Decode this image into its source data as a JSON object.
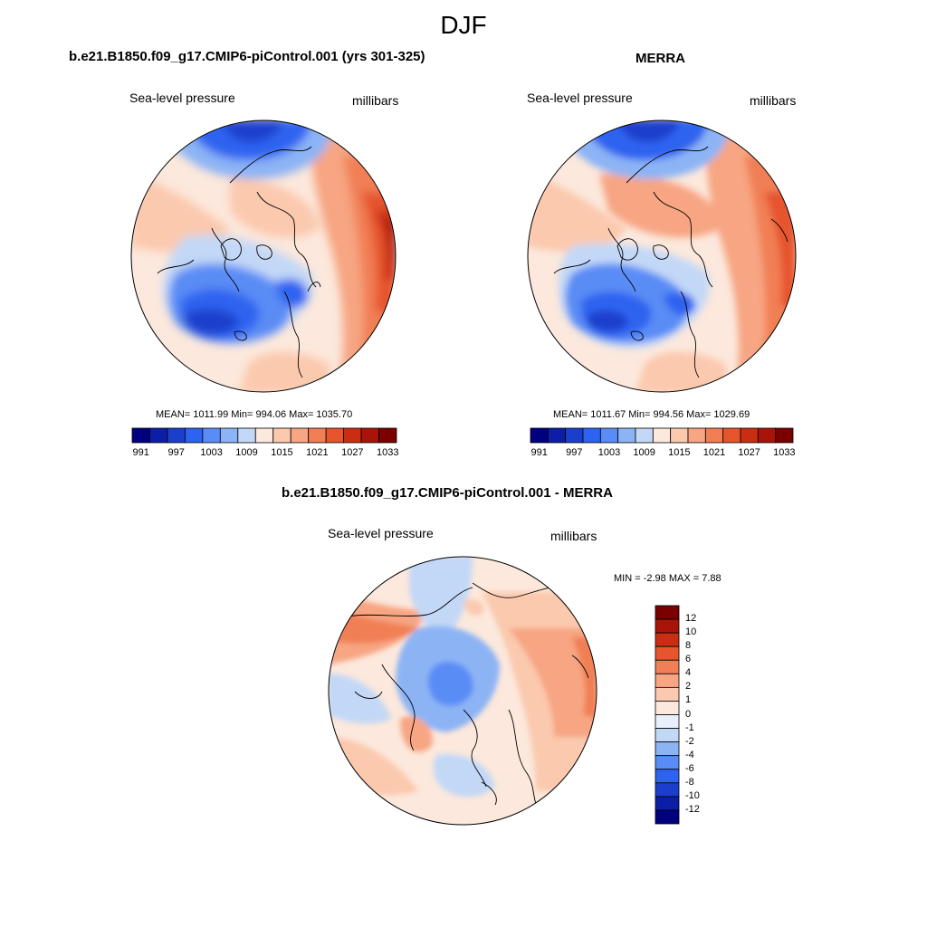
{
  "title": "DJF",
  "palettes": {
    "abs": [
      "#00007f",
      "#0c1ea5",
      "#1b3fcc",
      "#2d63f0",
      "#5a8cf5",
      "#8cb4f5",
      "#c3d8f7",
      "#fce8dc",
      "#fbc9ae",
      "#f7a582",
      "#f17f55",
      "#e6552d",
      "#c92e12",
      "#a81408",
      "#7b0000"
    ],
    "diff": [
      "#00007f",
      "#0c1ea5",
      "#1b3fcc",
      "#2d63f0",
      "#5a8cf5",
      "#8cb4f5",
      "#c3d8f7",
      "#e9f0fb",
      "#fce8dc",
      "#fbc9ae",
      "#f7a582",
      "#f17f55",
      "#e6552d",
      "#c92e12",
      "#a81408",
      "#7b0000"
    ]
  },
  "panels": [
    {
      "title": "b.e21.B1850.f09_g17.CMIP6-piControl.001 (yrs 301-325)",
      "variable": "Sea-level pressure",
      "units": "millibars",
      "stats": "MEAN= 1011.99  Min= 994.06  Max= 1035.70",
      "colorbar_ticks": [
        "991",
        "997",
        "1003",
        "1009",
        "1015",
        "1021",
        "1027",
        "1033"
      ]
    },
    {
      "title": "MERRA",
      "variable": "Sea-level pressure",
      "units": "millibars",
      "stats": "MEAN= 1011.67  Min= 994.56  Max= 1029.69",
      "colorbar_ticks": [
        "991",
        "997",
        "1003",
        "1009",
        "1015",
        "1021",
        "1027",
        "1033"
      ]
    },
    {
      "title": "b.e21.B1850.f09_g17.CMIP6-piControl.001 - MERRA",
      "variable": "Sea-level pressure",
      "units": "millibars",
      "stats": "MIN =  -2.98 MAX =   7.88",
      "colorbar_ticks": [
        "12",
        "10",
        "8",
        "6",
        "4",
        "2",
        "1",
        "0",
        "-1",
        "-2",
        "-4",
        "-6",
        "-8",
        "-10",
        "-12"
      ]
    }
  ]
}
